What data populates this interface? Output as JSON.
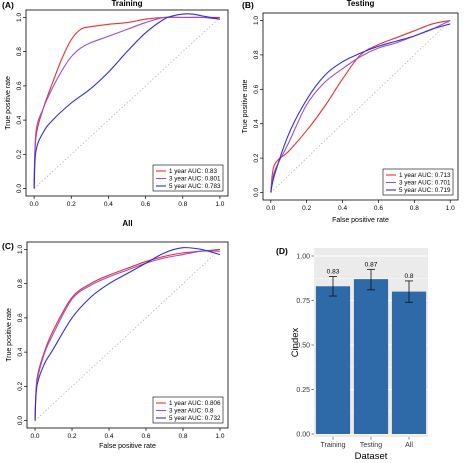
{
  "chart_data": [
    {
      "panel": "(A)",
      "type": "line",
      "title": "Training",
      "xlabel": "",
      "ylabel": "True positive rate",
      "xlim": [
        0,
        1
      ],
      "ylim": [
        0,
        1
      ],
      "xticks": [
        "0.0",
        "0.2",
        "0.4",
        "0.6",
        "0.8",
        "1.0"
      ],
      "yticks": [
        "0.0",
        "0.2",
        "0.4",
        "0.6",
        "0.8",
        "1.0"
      ],
      "legend_position": "bottom-right",
      "series": [
        {
          "name": "1 year AUC: 0.83",
          "color": "#e8312f",
          "x": [
            0,
            0.01,
            0.05,
            0.1,
            0.15,
            0.2,
            0.25,
            0.3,
            0.4,
            0.5,
            0.6,
            0.7,
            0.8,
            0.9,
            1.0
          ],
          "y": [
            0,
            0.3,
            0.47,
            0.62,
            0.76,
            0.87,
            0.93,
            0.945,
            0.96,
            0.97,
            0.99,
            1.0,
            1.0,
            1.0,
            1.0
          ]
        },
        {
          "name": "3 year AUC: 0.801",
          "color": "#9a4fd3",
          "x": [
            0,
            0.01,
            0.05,
            0.1,
            0.15,
            0.2,
            0.25,
            0.3,
            0.4,
            0.5,
            0.6,
            0.7,
            0.8,
            0.9,
            1.0
          ],
          "y": [
            0,
            0.33,
            0.47,
            0.59,
            0.69,
            0.77,
            0.82,
            0.85,
            0.89,
            0.93,
            0.97,
            1.0,
            1.0,
            1.0,
            0.99
          ]
        },
        {
          "name": "5 year AUC: 0.783",
          "color": "#2f2fd6",
          "x": [
            0,
            0.01,
            0.05,
            0.1,
            0.2,
            0.3,
            0.4,
            0.5,
            0.6,
            0.7,
            0.75,
            0.8,
            0.85,
            0.9,
            0.95,
            1.0
          ],
          "y": [
            0,
            0.22,
            0.33,
            0.4,
            0.5,
            0.58,
            0.68,
            0.8,
            0.91,
            0.99,
            1.01,
            1.02,
            1.02,
            1.01,
            1.0,
            0.99
          ]
        }
      ]
    },
    {
      "panel": "(B)",
      "type": "line",
      "title": "Testing",
      "xlabel": "False positive rate",
      "ylabel": "True positive rate",
      "xlim": [
        0,
        1
      ],
      "ylim": [
        0,
        1
      ],
      "xticks": [
        "0.0",
        "0.2",
        "0.4",
        "0.6",
        "0.8",
        "1.0"
      ],
      "yticks": [
        "0.0",
        "0.2",
        "0.4",
        "0.6",
        "0.8",
        "1.0"
      ],
      "legend_position": "bottom-right",
      "series": [
        {
          "name": "1 year AUC: 0.713",
          "color": "#e8312f",
          "x": [
            0,
            0.02,
            0.1,
            0.2,
            0.3,
            0.4,
            0.5,
            0.6,
            0.7,
            0.8,
            0.9,
            1.0
          ],
          "y": [
            0,
            0.16,
            0.24,
            0.36,
            0.5,
            0.66,
            0.8,
            0.86,
            0.9,
            0.94,
            0.98,
            1.0
          ]
        },
        {
          "name": "3 year AUC: 0.701",
          "color": "#9a4fd3",
          "x": [
            0,
            0.02,
            0.1,
            0.2,
            0.3,
            0.4,
            0.5,
            0.6,
            0.7,
            0.8,
            0.9,
            1.0
          ],
          "y": [
            0,
            0.12,
            0.29,
            0.51,
            0.64,
            0.72,
            0.79,
            0.84,
            0.87,
            0.91,
            0.95,
            1.0
          ]
        },
        {
          "name": "5 year AUC: 0.719",
          "color": "#2f2fd6",
          "x": [
            0,
            0.02,
            0.1,
            0.2,
            0.3,
            0.4,
            0.5,
            0.6,
            0.7,
            0.8,
            0.9,
            1.0
          ],
          "y": [
            0,
            0.1,
            0.34,
            0.54,
            0.68,
            0.76,
            0.81,
            0.85,
            0.88,
            0.91,
            0.95,
            0.98
          ]
        }
      ]
    },
    {
      "panel": "(C)",
      "type": "line",
      "title": "All",
      "xlabel": "False positive rate",
      "ylabel": "True positive rate",
      "xlim": [
        0,
        1
      ],
      "ylim": [
        0,
        1
      ],
      "xticks": [
        "0.0",
        "0.2",
        "0.4",
        "0.6",
        "0.8",
        "1.0"
      ],
      "yticks": [
        "0.0",
        "0.2",
        "0.4",
        "0.6",
        "0.8",
        "1.0"
      ],
      "legend_position": "bottom-right",
      "series": [
        {
          "name": "1 year AUC: 0.806",
          "color": "#e8312f",
          "x": [
            0,
            0.01,
            0.05,
            0.1,
            0.2,
            0.3,
            0.4,
            0.5,
            0.6,
            0.7,
            0.8,
            0.9,
            1.0
          ],
          "y": [
            0,
            0.24,
            0.4,
            0.53,
            0.72,
            0.8,
            0.85,
            0.89,
            0.93,
            0.96,
            0.98,
            0.99,
            1.0
          ]
        },
        {
          "name": "3 year AUC: 0.8",
          "color": "#9a4fd3",
          "x": [
            0,
            0.01,
            0.05,
            0.1,
            0.2,
            0.3,
            0.4,
            0.5,
            0.6,
            0.7,
            0.8,
            0.9,
            1.0
          ],
          "y": [
            0,
            0.22,
            0.39,
            0.51,
            0.71,
            0.79,
            0.84,
            0.88,
            0.92,
            0.95,
            0.97,
            0.99,
            0.99
          ]
        },
        {
          "name": "5 year AUC: 0.732",
          "color": "#2f2fd6",
          "x": [
            0,
            0.01,
            0.05,
            0.1,
            0.2,
            0.3,
            0.4,
            0.5,
            0.6,
            0.7,
            0.8,
            0.9,
            1.0
          ],
          "y": [
            0,
            0.2,
            0.33,
            0.42,
            0.6,
            0.72,
            0.8,
            0.86,
            0.92,
            0.98,
            1.01,
            1.0,
            0.97
          ]
        }
      ]
    },
    {
      "panel": "(D)",
      "type": "bar",
      "title": "",
      "xlabel": "Dataset",
      "ylabel": "Cindex",
      "ylim": [
        0,
        1
      ],
      "yticks": [
        "0.00",
        "0.25",
        "0.50",
        "0.75",
        "1.00"
      ],
      "grid": true,
      "bar_color": "#2e6aa8",
      "categories": [
        "Training",
        "Testing",
        "All"
      ],
      "values": [
        0.83,
        0.87,
        0.8
      ],
      "value_labels": [
        "0.83",
        "0.87",
        "0.8"
      ],
      "error_low": [
        0.775,
        0.81,
        0.74
      ],
      "error_high": [
        0.885,
        0.925,
        0.86
      ]
    }
  ]
}
